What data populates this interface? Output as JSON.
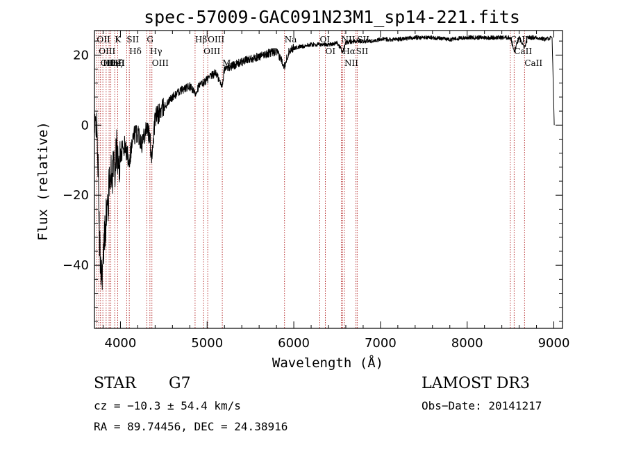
{
  "chart_data": {
    "type": "line",
    "title": "spec-57009-GAC091N23M1_sp14-221.fits",
    "xlabel": "Wavelength (Å)",
    "ylabel": "Flux (relative)",
    "xlim": [
      3700,
      9100
    ],
    "ylim": [
      -58,
      27
    ],
    "x_ticks": [
      4000,
      5000,
      6000,
      7000,
      8000,
      9000
    ],
    "x_tick_labels": [
      "4000",
      "5000",
      "6000",
      "7000",
      "8000",
      "9000"
    ],
    "y_ticks": [
      -40,
      -20,
      0,
      20
    ],
    "y_tick_labels": [
      "−40",
      "−20",
      "0",
      "20"
    ],
    "spectrum": {
      "name": "flux",
      "x": [
        3700,
        3720,
        3740,
        3760,
        3780,
        3800,
        3820,
        3840,
        3860,
        3880,
        3900,
        3920,
        3940,
        3960,
        3980,
        4000,
        4050,
        4100,
        4150,
        4200,
        4250,
        4300,
        4340,
        4360,
        4400,
        4500,
        4600,
        4700,
        4800,
        4861,
        4900,
        5000,
        5100,
        5170,
        5200,
        5300,
        5400,
        5500,
        5600,
        5700,
        5800,
        5893,
        5950,
        6000,
        6100,
        6200,
        6300,
        6400,
        6500,
        6563,
        6600,
        6700,
        6800,
        6900,
        7000,
        7200,
        7400,
        7600,
        7800,
        8000,
        8200,
        8400,
        8500,
        8542,
        8600,
        8662,
        8700,
        8800,
        8900,
        8980,
        9000,
        9005
      ],
      "y": [
        -3,
        2,
        -10,
        -35,
        -42,
        -40,
        -30,
        -25,
        -22,
        -12,
        -16,
        -10,
        -12,
        -6,
        -14,
        -8,
        -6,
        -10,
        -3,
        -2,
        -5,
        0,
        -4,
        -9,
        2,
        5,
        8,
        10,
        11,
        9,
        11,
        13,
        15,
        11,
        16,
        17,
        18,
        19,
        19.5,
        20.5,
        21,
        17,
        21.5,
        22,
        22.5,
        23,
        23,
        23,
        23.5,
        21,
        23.5,
        24,
        24,
        24,
        24.5,
        24.5,
        25,
        25,
        24.5,
        25,
        25,
        25,
        25,
        21,
        25,
        22,
        25,
        25,
        24.5,
        25,
        5,
        0
      ]
    },
    "line_markers": [
      {
        "wavelength": 3727,
        "label": "OII"
      },
      {
        "wavelength": 3750,
        "label": "OIII"
      },
      {
        "wavelength": 3770,
        "label": "OII"
      },
      {
        "wavelength": 3797,
        "label": "Hθ"
      },
      {
        "wavelength": 3835,
        "label": "Hη"
      },
      {
        "wavelength": 3869,
        "label": "HeI"
      },
      {
        "wavelength": 3889,
        "label": "Hζ"
      },
      {
        "wavelength": 3934,
        "label": "K"
      },
      {
        "wavelength": 3968,
        "label": "H"
      },
      {
        "wavelength": 4072,
        "label": "SII"
      },
      {
        "wavelength": 4102,
        "label": "Hδ"
      },
      {
        "wavelength": 4304,
        "label": "G"
      },
      {
        "wavelength": 4340,
        "label": "Hγ"
      },
      {
        "wavelength": 4363,
        "label": "OIII"
      },
      {
        "wavelength": 4861,
        "label": "Hβ"
      },
      {
        "wavelength": 4959,
        "label": "OIII"
      },
      {
        "wavelength": 5007,
        "label": "OIII"
      },
      {
        "wavelength": 5175,
        "label": "Mg"
      },
      {
        "wavelength": 5893,
        "label": "Na"
      },
      {
        "wavelength": 6300,
        "label": "OI"
      },
      {
        "wavelength": 6364,
        "label": "OI"
      },
      {
        "wavelength": 6548,
        "label": "NII"
      },
      {
        "wavelength": 6563,
        "label": "Hα"
      },
      {
        "wavelength": 6584,
        "label": "NII"
      },
      {
        "wavelength": 6717,
        "label": "SII"
      },
      {
        "wavelength": 6731,
        "label": "SII"
      },
      {
        "wavelength": 8498,
        "label": "CaII"
      },
      {
        "wavelength": 8542,
        "label": "CaII"
      },
      {
        "wavelength": 8662,
        "label": "CaII"
      }
    ],
    "marker_color": "#b22222",
    "line_color": "#000000"
  },
  "info": {
    "object_class": "STAR",
    "subclass": "G7",
    "survey": "LAMOST DR3",
    "redshift": "cz = −10.3 ± 54.4 km/s",
    "obs_date": "Obs−Date: 20141217",
    "coords": "RA =  89.74456, DEC =  24.38916"
  }
}
